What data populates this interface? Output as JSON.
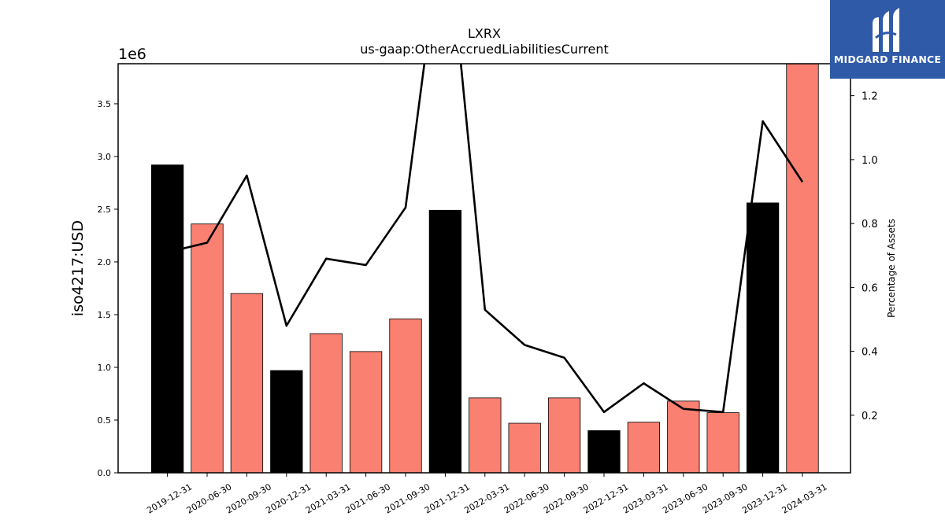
{
  "chart_data": {
    "type": "bar+line",
    "title": "LXRX",
    "subtitle": "us-gaap:OtherAccruedLiabilitiesCurrent",
    "ylabel": "iso4217:USD",
    "y_multiplier": "1e6",
    "y2label": "Percentage of Assets",
    "ylim": [
      0,
      3.88
    ],
    "y2lim": [
      0.02,
      1.3
    ],
    "yticks": [
      "0.0",
      "0.5",
      "1.0",
      "1.5",
      "2.0",
      "2.5",
      "3.0",
      "3.5"
    ],
    "y2ticks": [
      "0.2",
      "0.4",
      "0.6",
      "0.8",
      "1.0",
      "1.2"
    ],
    "categories": [
      "2019-12-31",
      "2020-06-30",
      "2020-09-30",
      "2020-12-31",
      "2021-03-31",
      "2021-06-30",
      "2021-09-30",
      "2021-12-31",
      "2022-03-31",
      "2022-06-30",
      "2022-09-30",
      "2022-12-31",
      "2023-03-31",
      "2023-06-30",
      "2023-09-30",
      "2023-12-31",
      "2024-03-31"
    ],
    "bar_values": [
      2.92,
      2.36,
      1.7,
      0.97,
      1.32,
      1.15,
      1.46,
      2.49,
      0.71,
      0.47,
      0.71,
      0.4,
      0.48,
      0.68,
      0.57,
      2.56,
      3.9
    ],
    "bar_colors": [
      "#000000",
      "#fa8072",
      "#fa8072",
      "#000000",
      "#fa8072",
      "#fa8072",
      "#fa8072",
      "#000000",
      "#fa8072",
      "#fa8072",
      "#fa8072",
      "#000000",
      "#fa8072",
      "#fa8072",
      "#fa8072",
      "#000000",
      "#fa8072"
    ],
    "line_values": [
      0.71,
      0.74,
      0.95,
      0.48,
      0.69,
      0.67,
      0.85,
      1.8,
      0.53,
      0.42,
      0.38,
      0.21,
      0.3,
      0.22,
      0.21,
      1.12,
      0.93
    ],
    "line_color": "#000000",
    "grid": false,
    "legend": "none"
  },
  "logo": {
    "text": "MIDGARD FINANCE",
    "background": "#2f5aa8"
  }
}
